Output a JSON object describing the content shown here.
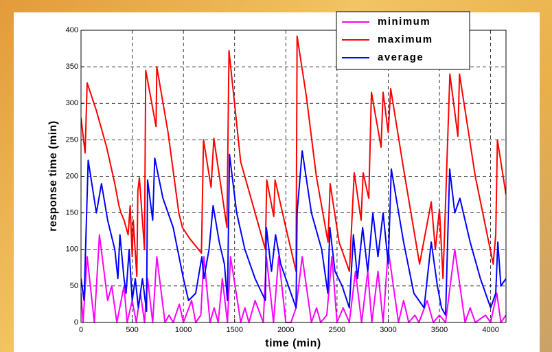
{
  "chart_data": {
    "type": "line",
    "xlabel": "time (min)",
    "ylabel": "response time (min)",
    "xlim": [
      0,
      4150
    ],
    "ylim": [
      0,
      400
    ],
    "xticks": [
      0,
      500,
      1000,
      1500,
      2000,
      2500,
      3000,
      3500,
      4000
    ],
    "yticks": [
      0,
      50,
      100,
      150,
      200,
      250,
      300,
      350,
      400
    ],
    "grid": true,
    "legend": "upper right",
    "series": [
      {
        "name": "minimum",
        "color": "#ff00ff",
        "x": [
          0,
          20,
          60,
          130,
          180,
          260,
          300,
          350,
          420,
          450,
          500,
          540,
          580,
          620,
          650,
          700,
          740,
          820,
          860,
          900,
          960,
          1000,
          1080,
          1120,
          1170,
          1200,
          1260,
          1300,
          1340,
          1380,
          1430,
          1460,
          1560,
          1600,
          1640,
          1700,
          1780,
          1810,
          1880,
          1930,
          2000,
          2050,
          2100,
          2160,
          2250,
          2300,
          2340,
          2400,
          2450,
          2500,
          2560,
          2620,
          2680,
          2740,
          2800,
          2840,
          2900,
          2950,
          3000,
          3100,
          3150,
          3200,
          3260,
          3300,
          3380,
          3440,
          3500,
          3560,
          3650,
          3750,
          3800,
          3850,
          3950,
          4000,
          4060,
          4100,
          4150
        ],
        "values": [
          40,
          0,
          90,
          0,
          120,
          30,
          50,
          0,
          50,
          0,
          30,
          0,
          40,
          0,
          60,
          0,
          90,
          0,
          10,
          0,
          25,
          0,
          30,
          0,
          10,
          90,
          0,
          20,
          0,
          60,
          0,
          90,
          0,
          20,
          0,
          30,
          0,
          90,
          0,
          90,
          0,
          0,
          20,
          90,
          0,
          20,
          0,
          10,
          90,
          0,
          20,
          0,
          70,
          0,
          70,
          0,
          70,
          0,
          100,
          0,
          30,
          0,
          10,
          0,
          30,
          0,
          10,
          0,
          100,
          0,
          20,
          0,
          10,
          0,
          40,
          0,
          10
        ]
      },
      {
        "name": "maximum",
        "color": "#ff0000",
        "x": [
          0,
          40,
          60,
          150,
          250,
          330,
          370,
          390,
          420,
          460,
          480,
          500,
          510,
          545,
          555,
          570,
          620,
          632,
          733,
          740,
          850,
          955,
          990,
          1060,
          1176,
          1196,
          1270,
          1297,
          1425,
          1445,
          1559,
          1700,
          1800,
          1814,
          1882,
          1895,
          2000,
          2100,
          2110,
          2200,
          2298,
          2412,
          2433,
          2520,
          2621,
          2668,
          2735,
          2755,
          2810,
          2836,
          2930,
          2950,
          3000,
          3024,
          3150,
          3306,
          3420,
          3460,
          3500,
          3535,
          3602,
          3680,
          3696,
          3850,
          4025,
          4050,
          4066,
          4150
        ],
        "values": [
          280,
          232,
          328,
          290,
          240,
          190,
          160,
          150,
          140,
          120,
          160,
          90,
          140,
          63,
          180,
          198,
          100,
          345,
          268,
          350,
          260,
          150,
          130,
          115,
          95,
          250,
          185,
          252,
          130,
          372,
          220,
          150,
          100,
          195,
          145,
          195,
          130,
          70,
          392,
          310,
          200,
          110,
          190,
          110,
          70,
          205,
          140,
          205,
          170,
          315,
          240,
          315,
          260,
          320,
          210,
          80,
          165,
          100,
          155,
          60,
          340,
          255,
          340,
          200,
          80,
          120,
          250,
          175
        ]
      },
      {
        "name": "average",
        "color": "#0000ff",
        "x": [
          0,
          30,
          70,
          150,
          200,
          260,
          330,
          360,
          380,
          420,
          440,
          470,
          500,
          530,
          560,
          600,
          640,
          650,
          700,
          720,
          800,
          900,
          1000,
          1050,
          1120,
          1180,
          1200,
          1250,
          1290,
          1350,
          1400,
          1430,
          1450,
          1520,
          1600,
          1700,
          1800,
          1810,
          1860,
          1900,
          1950,
          2050,
          2100,
          2110,
          2160,
          2250,
          2350,
          2410,
          2430,
          2480,
          2550,
          2620,
          2660,
          2700,
          2750,
          2800,
          2850,
          2900,
          2950,
          3000,
          3030,
          3150,
          3250,
          3350,
          3420,
          3480,
          3520,
          3560,
          3600,
          3650,
          3700,
          3800,
          3900,
          4000,
          4050,
          4070,
          4100,
          4150
        ],
        "values": [
          60,
          30,
          222,
          150,
          190,
          140,
          100,
          60,
          120,
          60,
          40,
          100,
          30,
          60,
          20,
          60,
          15,
          195,
          140,
          225,
          170,
          130,
          60,
          30,
          40,
          90,
          60,
          100,
          160,
          110,
          80,
          30,
          230,
          150,
          100,
          60,
          30,
          130,
          70,
          120,
          80,
          40,
          20,
          150,
          235,
          150,
          100,
          40,
          130,
          70,
          50,
          20,
          120,
          60,
          130,
          70,
          150,
          90,
          150,
          80,
          210,
          110,
          40,
          20,
          110,
          50,
          20,
          10,
          210,
          150,
          170,
          110,
          60,
          20,
          40,
          110,
          50,
          60
        ]
      }
    ]
  }
}
